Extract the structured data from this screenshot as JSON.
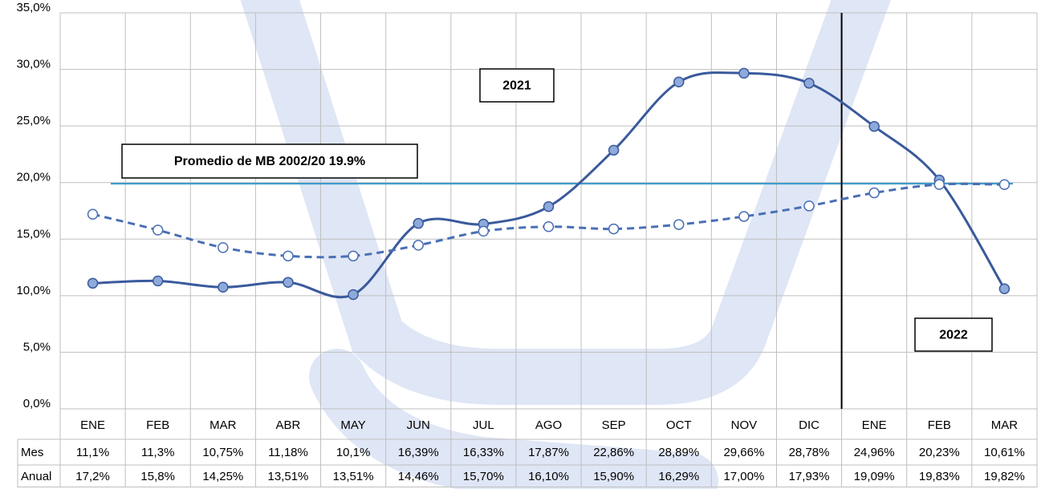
{
  "chart_data": {
    "type": "line",
    "categories": [
      "ENE",
      "FEB",
      "MAR",
      "ABR",
      "MAY",
      "JUN",
      "JUL",
      "AGO",
      "SEP",
      "OCT",
      "NOV",
      "DIC",
      "ENE",
      "FEB",
      "MAR"
    ],
    "series": [
      {
        "name": "Mes",
        "color": "#3a5a9c",
        "marker_fill": "#8eaadb",
        "dashed": false,
        "values": [
          11.1,
          11.3,
          10.75,
          11.18,
          10.1,
          16.39,
          16.33,
          17.87,
          22.86,
          28.89,
          29.66,
          28.78,
          24.96,
          20.23,
          10.61
        ],
        "value_labels": [
          "11,1%",
          "11,3%",
          "10,75%",
          "11,18%",
          "10,1%",
          "16,39%",
          "16,33%",
          "17,87%",
          "22,86%",
          "28,89%",
          "29,66%",
          "28,78%",
          "24,96%",
          "20,23%",
          "10,61%"
        ]
      },
      {
        "name": "Anual",
        "color": "#4a6fb5",
        "marker_fill": "#ffffff",
        "dashed": true,
        "values": [
          17.2,
          15.8,
          14.25,
          13.51,
          13.51,
          14.46,
          15.7,
          16.1,
          15.9,
          16.29,
          17.0,
          17.93,
          19.09,
          19.83,
          19.82
        ],
        "value_labels": [
          "17,2%",
          "15,8%",
          "14,25%",
          "13,51%",
          "13,51%",
          "14,46%",
          "15,70%",
          "16,10%",
          "15,90%",
          "16,29%",
          "17,00%",
          "17,93%",
          "19,09%",
          "19,83%",
          "19,82%"
        ]
      }
    ],
    "ylim": [
      0,
      35
    ],
    "yticks": [
      {
        "value": 0,
        "label": "0,0%"
      },
      {
        "value": 5,
        "label": "5,0%"
      },
      {
        "value": 10,
        "label": "10,0%"
      },
      {
        "value": 15,
        "label": "15,0%"
      },
      {
        "value": 20,
        "label": "20,0%"
      },
      {
        "value": 25,
        "label": "25,0%"
      },
      {
        "value": 30,
        "label": "30,0%"
      },
      {
        "value": 35,
        "label": "35,0%"
      }
    ],
    "grid": true,
    "reference_line": {
      "label": "Promedio de MB 2002/20 19.9%",
      "value": 19.9,
      "color": "#3399cc"
    },
    "annotations": [
      "2021",
      "2022"
    ]
  }
}
